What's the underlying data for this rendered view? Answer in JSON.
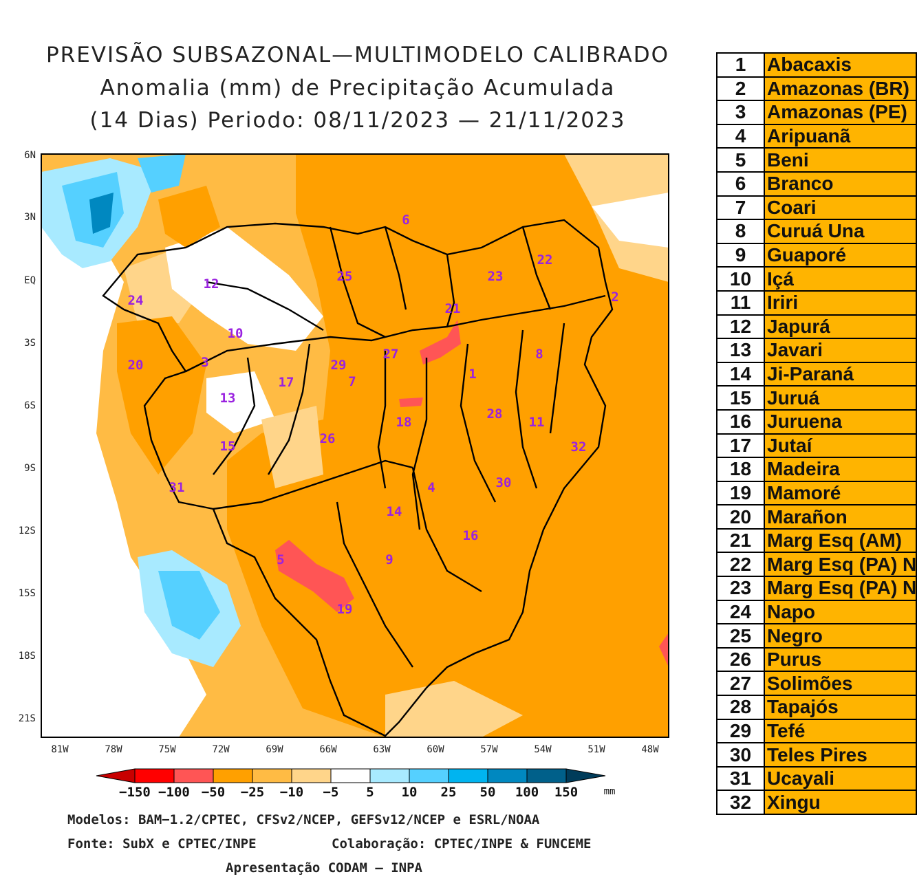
{
  "title": {
    "line1": "PREVISÃO SUBSAZONAL—MULTIMODELO CALIBRADO",
    "line2": "Anomalia (mm) de Precipitação Acumulada",
    "line3": "(14 Dias) Periodo: 08/11/2023 — 21/11/2023"
  },
  "map": {
    "lat_labels": [
      "6N",
      "3N",
      "EQ",
      "3S",
      "6S",
      "9S",
      "12S",
      "15S",
      "18S",
      "21S"
    ],
    "lon_labels": [
      "81W",
      "78W",
      "75W",
      "72W",
      "69W",
      "66W",
      "63W",
      "60W",
      "57W",
      "54W",
      "51W",
      "48W"
    ],
    "basin_markers": [
      "1",
      "2",
      "3",
      "4",
      "5",
      "6",
      "7",
      "8",
      "9",
      "10",
      "11",
      "12",
      "13",
      "14",
      "15",
      "16",
      "17",
      "18",
      "19",
      "20",
      "21",
      "22",
      "23",
      "24",
      "25",
      "26",
      "27",
      "28",
      "29",
      "30",
      "31",
      "32"
    ]
  },
  "legend": {
    "labels": [
      "−150",
      "−100",
      "−50",
      "−25",
      "−10",
      "−5",
      "5",
      "10",
      "25",
      "50",
      "100",
      "150"
    ],
    "unit": "mm",
    "colors": [
      "#c80000",
      "#ff0000",
      "#ff5555",
      "#ffa000",
      "#ffbb44",
      "#ffd58a",
      "#ffffff",
      "#a8eaff",
      "#55d0ff",
      "#00b4f0",
      "#0088c0",
      "#00608a",
      "#003c5a"
    ]
  },
  "footer": {
    "models": "Modelos: BAM−1.2/CPTEC, CFSv2/NCEP, GEFSv12/NCEP e ESRL/NOAA",
    "source": "Fonte: SubX e CPTEC/INPE",
    "collab": "Colaboração: CPTEC/INPE & FUNCEME",
    "presentation": "Apresentação CODAM — INPA"
  },
  "basins": [
    {
      "num": "1",
      "name": "Abacaxis"
    },
    {
      "num": "2",
      "name": "Amazonas (BR)"
    },
    {
      "num": "3",
      "name": "Amazonas (PE)"
    },
    {
      "num": "4",
      "name": "Aripuanã"
    },
    {
      "num": "5",
      "name": "Beni"
    },
    {
      "num": "6",
      "name": "Branco"
    },
    {
      "num": "7",
      "name": "Coari"
    },
    {
      "num": "8",
      "name": "Curuá Una"
    },
    {
      "num": "9",
      "name": "Guaporé"
    },
    {
      "num": "10",
      "name": "Içá"
    },
    {
      "num": "11",
      "name": "Iriri"
    },
    {
      "num": "12",
      "name": "Japurá"
    },
    {
      "num": "13",
      "name": "Javari"
    },
    {
      "num": "14",
      "name": "Ji-Paraná"
    },
    {
      "num": "15",
      "name": "Juruá"
    },
    {
      "num": "16",
      "name": "Juruena"
    },
    {
      "num": "17",
      "name": "Jutaí"
    },
    {
      "num": "18",
      "name": "Madeira"
    },
    {
      "num": "19",
      "name": "Mamoré"
    },
    {
      "num": "20",
      "name": "Marañon"
    },
    {
      "num": "21",
      "name": "Marg Esq (AM)"
    },
    {
      "num": "22",
      "name": "Marg Esq (PA) N"
    },
    {
      "num": "23",
      "name": "Marg Esq (PA) N"
    },
    {
      "num": "24",
      "name": "Napo"
    },
    {
      "num": "25",
      "name": "Negro"
    },
    {
      "num": "26",
      "name": "Purus"
    },
    {
      "num": "27",
      "name": "Solimões"
    },
    {
      "num": "28",
      "name": "Tapajós"
    },
    {
      "num": "29",
      "name": "Tefé"
    },
    {
      "num": "30",
      "name": "Teles Pires"
    },
    {
      "num": "31",
      "name": "Ucayali"
    },
    {
      "num": "32",
      "name": "Xingu"
    }
  ]
}
